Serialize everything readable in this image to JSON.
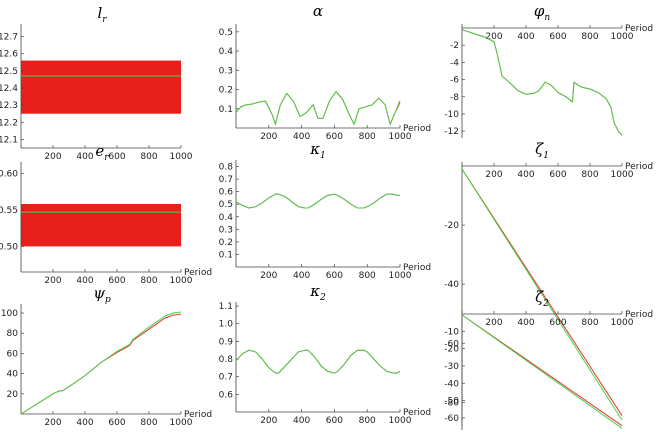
{
  "colors": {
    "red": "#e8362e",
    "green": "#49d14b",
    "band": "#e8201c",
    "axis": "#444444"
  },
  "chart_data": [
    {
      "type": "area",
      "title": "l",
      "subscript": "r",
      "xlabel": "",
      "ylabel": "",
      "xlim": [
        0,
        1000
      ],
      "ylim": [
        12.05,
        12.75
      ],
      "xticks": [
        200,
        400,
        600,
        800,
        1000
      ],
      "xtick_labels": [
        "200",
        "400",
        "600",
        "800",
        "1000"
      ],
      "yticks": [
        12.1,
        12.2,
        12.3,
        12.4,
        12.5,
        12.6,
        12.7
      ],
      "ytick_labels": [
        "12.1",
        "12.2",
        "12.3",
        "12.4",
        "12.5",
        "12.6",
        "12.7"
      ],
      "xaxis_at": 12.05,
      "xaxis_label": "",
      "band": {
        "x": [
          0,
          1000
        ],
        "lower": 12.25,
        "upper": 12.56
      },
      "series": [
        {
          "color": "green",
          "x": [
            0,
            1000
          ],
          "y": [
            12.47,
            12.47
          ]
        }
      ]
    },
    {
      "type": "line",
      "title": "α",
      "subscript": "",
      "xlim": [
        0,
        1000
      ],
      "ylim": [
        0,
        0.52
      ],
      "xticks": [
        200,
        400,
        600,
        800,
        1000
      ],
      "xtick_labels": [
        "200",
        "400",
        "600",
        "800",
        "1000"
      ],
      "yticks": [
        0.1,
        0.2,
        0.3,
        0.4,
        0.5
      ],
      "ytick_labels": [
        "0.1",
        "0.2",
        "0.3",
        "0.4",
        "0.5"
      ],
      "xaxis_at": 0,
      "xaxis_label": "Period",
      "series": [
        {
          "color": "red",
          "x": [
            0,
            30,
            60,
            100,
            140,
            180,
            220,
            240,
            270,
            310,
            350,
            390,
            430,
            470,
            500,
            530,
            570,
            610,
            650,
            690,
            720,
            750,
            790,
            830,
            870,
            910,
            940,
            970,
            1000
          ],
          "y": [
            0.08,
            0.11,
            0.12,
            0.125,
            0.135,
            0.14,
            0.07,
            0.02,
            0.12,
            0.18,
            0.14,
            0.06,
            0.08,
            0.12,
            0.05,
            0.05,
            0.14,
            0.19,
            0.15,
            0.07,
            0.02,
            0.1,
            0.11,
            0.12,
            0.155,
            0.12,
            0.02,
            0.08,
            0.14
          ]
        },
        {
          "color": "green",
          "x": [
            0,
            30,
            60,
            100,
            140,
            180,
            220,
            240,
            270,
            310,
            350,
            390,
            430,
            470,
            500,
            530,
            570,
            610,
            650,
            690,
            720,
            750,
            790,
            830,
            870,
            910,
            940,
            970,
            1000
          ],
          "y": [
            0.08,
            0.11,
            0.12,
            0.125,
            0.135,
            0.14,
            0.07,
            0.02,
            0.12,
            0.18,
            0.14,
            0.06,
            0.08,
            0.12,
            0.05,
            0.05,
            0.14,
            0.19,
            0.15,
            0.07,
            0.02,
            0.1,
            0.11,
            0.12,
            0.155,
            0.12,
            0.02,
            0.08,
            0.13
          ]
        }
      ]
    },
    {
      "type": "line",
      "title": "φ",
      "subscript": "n",
      "xlim": [
        0,
        1000
      ],
      "ylim": [
        -12.8,
        0
      ],
      "xticks": [
        200,
        400,
        600,
        800,
        1000
      ],
      "xtick_labels": [
        "200",
        "400",
        "600",
        "800",
        "1000"
      ],
      "yticks": [
        -2,
        -4,
        -6,
        -8,
        -10,
        -12
      ],
      "ytick_labels": [
        "-2",
        "-4",
        "-6",
        "-8",
        "-10",
        "-12"
      ],
      "xaxis_at": 0,
      "xaxis_label": "Period",
      "series": [
        {
          "color": "red",
          "x": [
            0,
            50,
            100,
            150,
            200,
            220,
            235,
            250,
            300,
            350,
            400,
            450,
            480,
            520,
            560,
            600,
            650,
            690,
            700,
            720,
            750,
            800,
            850,
            900,
            930,
            950,
            980,
            1000
          ],
          "y": [
            -0.2,
            -0.5,
            -0.8,
            -1.1,
            -1.6,
            -3.0,
            -4.3,
            -5.6,
            -6.4,
            -7.3,
            -7.7,
            -7.6,
            -7.3,
            -6.3,
            -6.7,
            -7.5,
            -8.0,
            -8.6,
            -6.3,
            -6.6,
            -6.9,
            -7.1,
            -7.5,
            -8.2,
            -9.2,
            -11.0,
            -12.1,
            -12.5
          ]
        },
        {
          "color": "green",
          "x": [
            0,
            50,
            100,
            150,
            200,
            220,
            235,
            250,
            300,
            350,
            400,
            450,
            480,
            520,
            560,
            600,
            650,
            690,
            700,
            720,
            750,
            800,
            850,
            900,
            930,
            950,
            980,
            1000
          ],
          "y": [
            -0.2,
            -0.5,
            -0.8,
            -1.1,
            -1.6,
            -3.0,
            -4.3,
            -5.6,
            -6.4,
            -7.3,
            -7.7,
            -7.6,
            -7.3,
            -6.3,
            -6.7,
            -7.5,
            -8.0,
            -8.6,
            -6.3,
            -6.6,
            -6.9,
            -7.1,
            -7.5,
            -8.2,
            -9.2,
            -11.0,
            -12.1,
            -12.5
          ]
        }
      ]
    },
    {
      "type": "area",
      "title": "e",
      "subscript": "r",
      "xlim": [
        0,
        1000
      ],
      "ylim": [
        0.465,
        0.61
      ],
      "xticks": [
        200,
        400,
        600,
        800,
        1000
      ],
      "xtick_labels": [
        "200",
        "400",
        "600",
        "800",
        "1000"
      ],
      "yticks": [
        0.5,
        0.55,
        0.6
      ],
      "ytick_labels": [
        "0.50",
        "0.55",
        "0.60"
      ],
      "xaxis_at": 0.465,
      "xaxis_label": "Period",
      "band": {
        "x": [
          0,
          1000
        ],
        "lower": 0.5,
        "upper": 0.558
      },
      "series": [
        {
          "color": "green",
          "x": [
            0,
            1000
          ],
          "y": [
            0.547,
            0.547
          ]
        }
      ]
    },
    {
      "type": "line",
      "title": "κ",
      "subscript": "1",
      "xlim": [
        0,
        1000
      ],
      "ylim": [
        0,
        0.82
      ],
      "xticks": [
        200,
        400,
        600,
        800,
        1000
      ],
      "xtick_labels": [
        "200",
        "400",
        "600",
        "800",
        "1000"
      ],
      "yticks": [
        0.1,
        0.2,
        0.3,
        0.4,
        0.5,
        0.6,
        0.7,
        0.8
      ],
      "ytick_labels": [
        "0.1",
        "0.2",
        "0.3",
        "0.4",
        "0.5",
        "0.6",
        "0.7",
        "0.8"
      ],
      "xaxis_at": 0,
      "xaxis_label": "Period",
      "series": [
        {
          "color": "red",
          "x": [
            0,
            40,
            80,
            120,
            160,
            200,
            240,
            260,
            300,
            340,
            380,
            420,
            440,
            480,
            520,
            560,
            600,
            620,
            660,
            700,
            740,
            780,
            800,
            840,
            880,
            920,
            960,
            980,
            1000
          ],
          "y": [
            0.52,
            0.49,
            0.47,
            0.48,
            0.51,
            0.55,
            0.58,
            0.58,
            0.56,
            0.52,
            0.48,
            0.47,
            0.47,
            0.5,
            0.54,
            0.57,
            0.58,
            0.57,
            0.54,
            0.5,
            0.47,
            0.47,
            0.48,
            0.51,
            0.55,
            0.58,
            0.58,
            0.57,
            0.57
          ]
        },
        {
          "color": "green",
          "x": [
            0,
            40,
            80,
            120,
            160,
            200,
            240,
            260,
            300,
            340,
            380,
            420,
            440,
            480,
            520,
            560,
            600,
            620,
            660,
            700,
            740,
            780,
            800,
            840,
            880,
            920,
            960,
            980,
            1000
          ],
          "y": [
            0.52,
            0.49,
            0.47,
            0.48,
            0.51,
            0.55,
            0.58,
            0.58,
            0.56,
            0.52,
            0.48,
            0.47,
            0.47,
            0.5,
            0.54,
            0.57,
            0.58,
            0.57,
            0.54,
            0.5,
            0.47,
            0.47,
            0.48,
            0.51,
            0.55,
            0.58,
            0.58,
            0.57,
            0.57
          ]
        }
      ]
    },
    {
      "type": "line",
      "title": "ζ",
      "subscript": "1",
      "xlim": [
        0,
        1000
      ],
      "ylim": [
        -88,
        0
      ],
      "xticks": [
        200,
        400,
        600,
        800,
        1000
      ],
      "xtick_labels": [
        "200",
        "400",
        "600",
        "800",
        "1000"
      ],
      "yticks": [
        -20,
        -40,
        -60,
        -80
      ],
      "ytick_labels": [
        "-20",
        "-40",
        "-60",
        "-80"
      ],
      "xaxis_at": 0,
      "xaxis_label": "Period",
      "series": [
        {
          "color": "red",
          "x": [
            0,
            1000
          ],
          "y": [
            -1,
            -84.5
          ]
        },
        {
          "color": "green",
          "x": [
            0,
            1000
          ],
          "y": [
            -1,
            -86
          ]
        }
      ]
    },
    {
      "type": "line",
      "title": "ψ",
      "subscript": "p",
      "xlim": [
        0,
        1000
      ],
      "ylim": [
        0,
        105
      ],
      "xticks": [
        200,
        400,
        600,
        800,
        1000
      ],
      "xtick_labels": [
        "200",
        "400",
        "600",
        "800",
        "1000"
      ],
      "yticks": [
        20,
        40,
        60,
        80,
        100
      ],
      "ytick_labels": [
        "20",
        "40",
        "60",
        "80",
        "100"
      ],
      "xaxis_at": 0,
      "xaxis_label": "Period",
      "series": [
        {
          "color": "red",
          "x": [
            0,
            100,
            200,
            240,
            260,
            300,
            400,
            500,
            600,
            680,
            700,
            800,
            900,
            950,
            1000
          ],
          "y": [
            0,
            10,
            20,
            23,
            23,
            27,
            38,
            51,
            61,
            68,
            73,
            84,
            95,
            98,
            99
          ]
        },
        {
          "color": "green",
          "x": [
            0,
            100,
            200,
            240,
            260,
            300,
            400,
            500,
            600,
            680,
            700,
            800,
            900,
            950,
            1000
          ],
          "y": [
            0,
            10,
            20,
            23,
            23,
            27,
            38,
            51,
            62,
            69,
            74,
            86,
            97,
            100,
            101
          ]
        }
      ]
    },
    {
      "type": "line",
      "title": "κ",
      "subscript": "2",
      "xlim": [
        0,
        1000
      ],
      "ylim": [
        0.5,
        1.1
      ],
      "xticks": [
        200,
        400,
        600,
        800,
        1000
      ],
      "xtick_labels": [
        "200",
        "400",
        "600",
        "800",
        "1000"
      ],
      "yticks": [
        0.6,
        0.7,
        0.8,
        0.9,
        1.0,
        1.1
      ],
      "ytick_labels": [
        "0.6",
        "0.7",
        "0.8",
        "0.9",
        "1.0",
        "1.1"
      ],
      "xaxis_at": 0.5,
      "xaxis_label": "Period",
      "series": [
        {
          "color": "red",
          "x": [
            0,
            40,
            80,
            120,
            160,
            200,
            240,
            260,
            300,
            340,
            380,
            420,
            440,
            480,
            520,
            560,
            600,
            620,
            660,
            700,
            740,
            780,
            800,
            840,
            880,
            920,
            960,
            980,
            1000
          ],
          "y": [
            0.79,
            0.83,
            0.85,
            0.84,
            0.8,
            0.75,
            0.72,
            0.72,
            0.76,
            0.8,
            0.84,
            0.85,
            0.85,
            0.81,
            0.76,
            0.73,
            0.72,
            0.73,
            0.77,
            0.82,
            0.85,
            0.85,
            0.84,
            0.8,
            0.76,
            0.73,
            0.72,
            0.72,
            0.73
          ]
        },
        {
          "color": "green",
          "x": [
            0,
            40,
            80,
            120,
            160,
            200,
            240,
            260,
            300,
            340,
            380,
            420,
            440,
            480,
            520,
            560,
            600,
            620,
            660,
            700,
            740,
            780,
            800,
            840,
            880,
            920,
            960,
            980,
            1000
          ],
          "y": [
            0.79,
            0.83,
            0.85,
            0.84,
            0.8,
            0.75,
            0.72,
            0.72,
            0.76,
            0.8,
            0.84,
            0.85,
            0.85,
            0.81,
            0.76,
            0.73,
            0.72,
            0.73,
            0.77,
            0.82,
            0.85,
            0.85,
            0.84,
            0.8,
            0.76,
            0.73,
            0.72,
            0.72,
            0.73
          ]
        }
      ]
    },
    {
      "type": "line",
      "title": "ζ",
      "subscript": "2",
      "xlim": [
        0,
        1000
      ],
      "ylim": [
        -67,
        0
      ],
      "xticks": [
        200,
        400,
        600,
        800,
        1000
      ],
      "xtick_labels": [
        "200",
        "400",
        "600",
        "800",
        "1000"
      ],
      "yticks": [
        -10,
        -20,
        -30,
        -40,
        -50,
        -60
      ],
      "ytick_labels": [
        "-10",
        "-20",
        "-30",
        "-40",
        "-50",
        "-60"
      ],
      "xaxis_at": 0,
      "xaxis_label": "Period",
      "series": [
        {
          "color": "red",
          "x": [
            0,
            1000
          ],
          "y": [
            -0.5,
            -64.5
          ]
        },
        {
          "color": "green",
          "x": [
            0,
            1000
          ],
          "y": [
            -0.5,
            -66
          ]
        }
      ]
    }
  ]
}
